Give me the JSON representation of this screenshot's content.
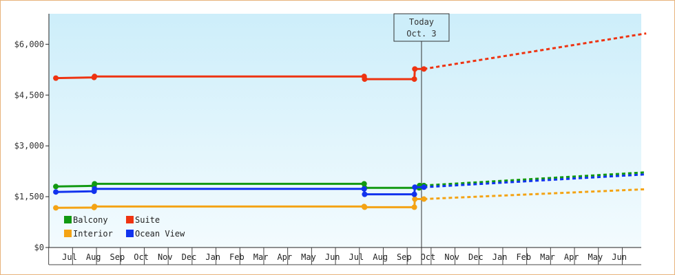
{
  "chart_data": {
    "type": "line",
    "title": "",
    "xlabel": "",
    "ylabel": "",
    "ylim": [
      0,
      6900
    ],
    "yticks": [
      {
        "value": 0,
        "label": "$0"
      },
      {
        "value": 1500,
        "label": "$1,500"
      },
      {
        "value": 3000,
        "label": "$3,000"
      },
      {
        "value": 4500,
        "label": "$4,500"
      },
      {
        "value": 6000,
        "label": "$6,000"
      }
    ],
    "x_ticks": [
      "Jul",
      "Aug",
      "Sep",
      "Oct",
      "Nov",
      "Dec",
      "Jan",
      "Feb",
      "Mar",
      "Apr",
      "May",
      "Jun",
      "Jul",
      "Aug",
      "Sep",
      "Oct",
      "Nov",
      "Dec",
      "Jan",
      "Feb",
      "Mar",
      "Apr",
      "May",
      "Jun"
    ],
    "grid": false,
    "legend_position": "bottom-left",
    "today_marker": {
      "label": "Today",
      "date": "Oct. 3",
      "x": 15.1
    },
    "background": {
      "top": "#cdeefa",
      "bottom": "#f3fbfe"
    },
    "series": [
      {
        "name": "Balcony",
        "color": "#119911",
        "points": [
          [
            -0.2,
            1800
          ],
          [
            1.4,
            1820
          ],
          [
            1.42,
            1880
          ],
          [
            12.7,
            1880
          ],
          [
            12.72,
            1760
          ],
          [
            15.0,
            1760
          ],
          [
            15.02,
            1830
          ],
          [
            15.2,
            1830
          ]
        ],
        "forecast": [
          [
            15.2,
            1830
          ],
          [
            24.5,
            2220
          ]
        ]
      },
      {
        "name": "Suite",
        "color": "#ee3311",
        "points": [
          [
            -0.2,
            5000
          ],
          [
            1.4,
            5020
          ],
          [
            1.42,
            5050
          ],
          [
            12.7,
            5050
          ],
          [
            12.72,
            4970
          ],
          [
            14.8,
            4970
          ],
          [
            14.82,
            5270
          ],
          [
            15.2,
            5270
          ]
        ],
        "forecast": [
          [
            15.2,
            5270
          ],
          [
            24.5,
            6320
          ]
        ]
      },
      {
        "name": "Interior",
        "color": "#f4a314",
        "points": [
          [
            -0.2,
            1170
          ],
          [
            1.4,
            1180
          ],
          [
            1.42,
            1210
          ],
          [
            12.7,
            1210
          ],
          [
            12.72,
            1190
          ],
          [
            14.8,
            1190
          ],
          [
            14.82,
            1430
          ],
          [
            15.2,
            1430
          ]
        ],
        "forecast": [
          [
            15.2,
            1430
          ],
          [
            24.5,
            1720
          ]
        ]
      },
      {
        "name": "Ocean View",
        "color": "#1133ee",
        "points": [
          [
            -0.2,
            1640
          ],
          [
            1.4,
            1660
          ],
          [
            1.42,
            1730
          ],
          [
            12.7,
            1730
          ],
          [
            12.72,
            1570
          ],
          [
            14.8,
            1570
          ],
          [
            14.82,
            1780
          ],
          [
            15.2,
            1780
          ]
        ],
        "forecast": [
          [
            15.2,
            1780
          ],
          [
            24.5,
            2160
          ]
        ]
      }
    ]
  }
}
